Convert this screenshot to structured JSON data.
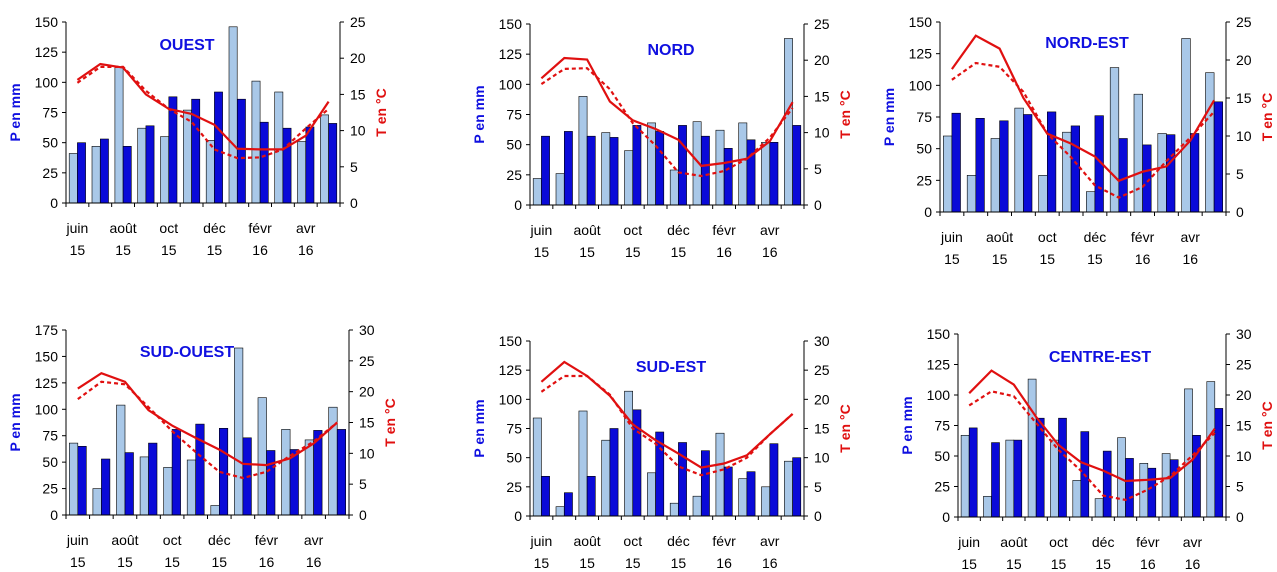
{
  "chart_data": [
    {
      "type": "bar",
      "title": "OUEST",
      "ylabel": "P en mm",
      "y2label": "T en °C",
      "ylim": [
        0,
        150
      ],
      "y2lim": [
        0,
        25
      ],
      "yticks": [
        "0",
        "25",
        "50",
        "75",
        "100",
        "125",
        "150"
      ],
      "y2ticks": [
        "0",
        "5",
        "10",
        "15",
        "20",
        "25"
      ],
      "xticks": [
        [
          "juin",
          "15"
        ],
        [
          "août",
          "15"
        ],
        [
          "oct",
          "15"
        ],
        [
          "déc",
          "15"
        ],
        [
          "févr",
          "16"
        ],
        [
          "avr",
          "16"
        ]
      ],
      "precip_light": [
        41,
        47,
        113,
        62,
        55,
        77,
        52,
        146,
        101,
        92,
        51,
        73
      ],
      "precip_dark": [
        50,
        53,
        47,
        64,
        88,
        86,
        92,
        86,
        67,
        62,
        63,
        66
      ],
      "temp_solid": [
        17.0,
        19.2,
        18.7,
        15.0,
        13.0,
        12.3,
        10.8,
        7.5,
        7.4,
        7.4,
        9.3,
        14.0
      ],
      "temp_dashed": [
        16.6,
        18.8,
        18.8,
        15.5,
        13.0,
        11.2,
        7.4,
        6.2,
        6.3,
        7.4,
        10.3,
        13.0
      ]
    },
    {
      "type": "bar",
      "title": "NORD",
      "ylabel": "P en mm",
      "y2label": "T en °C",
      "ylim": [
        0,
        150
      ],
      "y2lim": [
        0,
        25
      ],
      "yticks": [
        "0",
        "25",
        "50",
        "75",
        "100",
        "125",
        "150"
      ],
      "y2ticks": [
        "0",
        "5",
        "10",
        "15",
        "20",
        "25"
      ],
      "xticks": [
        [
          "juin",
          "15"
        ],
        [
          "août",
          "15"
        ],
        [
          "oct",
          "15"
        ],
        [
          "déc",
          "15"
        ],
        [
          "févr",
          "16"
        ],
        [
          "avr",
          "16"
        ]
      ],
      "precip_light": [
        22,
        26,
        90,
        60,
        45,
        68,
        29,
        69,
        62,
        68,
        52,
        138
      ],
      "precip_dark": [
        57,
        61,
        57,
        56,
        66,
        61,
        66,
        57,
        47,
        54,
        52,
        66
      ],
      "temp_solid": [
        17.5,
        20.3,
        20.1,
        14.3,
        11.7,
        10.5,
        9.0,
        5.4,
        5.8,
        6.4,
        8.8,
        14.2
      ],
      "temp_dashed": [
        16.7,
        18.8,
        18.9,
        16.0,
        11.3,
        8.2,
        4.5,
        4.0,
        4.7,
        6.4,
        9.3,
        13.4
      ]
    },
    {
      "type": "bar",
      "title": "NORD-EST",
      "ylabel": "P en mm",
      "y2label": "T en °C",
      "ylim": [
        0,
        150
      ],
      "y2lim": [
        0,
        25
      ],
      "yticks": [
        "0",
        "25",
        "50",
        "75",
        "100",
        "125",
        "150"
      ],
      "y2ticks": [
        "0",
        "5",
        "10",
        "15",
        "20",
        "25"
      ],
      "xticks": [
        [
          "juin",
          "15"
        ],
        [
          "août",
          "15"
        ],
        [
          "oct",
          "15"
        ],
        [
          "déc",
          "15"
        ],
        [
          "févr",
          "16"
        ],
        [
          "avr",
          "16"
        ]
      ],
      "precip_light": [
        60,
        29,
        58,
        82,
        29,
        63,
        16,
        114,
        93,
        62,
        137,
        110
      ],
      "precip_dark": [
        78,
        74,
        72,
        77,
        79,
        68,
        76,
        58,
        53,
        61,
        62,
        87
      ],
      "temp_solid": [
        18.8,
        23.2,
        21.5,
        15.0,
        10.3,
        9.0,
        7.3,
        4.1,
        5.3,
        6.0,
        9.4,
        14.7
      ],
      "temp_dashed": [
        17.4,
        19.6,
        19.1,
        15.8,
        10.3,
        7.2,
        3.5,
        1.9,
        3.3,
        6.7,
        9.8,
        13.2
      ]
    },
    {
      "type": "bar",
      "title": "SUD-OUEST",
      "ylabel": "P en mm",
      "y2label": "T en °C",
      "ylim": [
        0,
        175
      ],
      "y2lim": [
        0,
        30
      ],
      "yticks": [
        "0",
        "25",
        "50",
        "75",
        "100",
        "125",
        "150",
        "175"
      ],
      "y2ticks": [
        "0",
        "5",
        "10",
        "15",
        "20",
        "25",
        "30"
      ],
      "xticks": [
        [
          "juin",
          "15"
        ],
        [
          "août",
          "15"
        ],
        [
          "oct",
          "15"
        ],
        [
          "déc",
          "15"
        ],
        [
          "févr",
          "16"
        ],
        [
          "avr",
          "16"
        ]
      ],
      "precip_light": [
        68,
        25,
        104,
        55,
        45,
        52,
        9,
        158,
        111,
        81,
        71,
        102
      ],
      "precip_dark": [
        65,
        53,
        59,
        68,
        81,
        86,
        82,
        73,
        61,
        62,
        80,
        81
      ],
      "temp_solid": [
        20.5,
        23.0,
        21.6,
        17.0,
        14.5,
        12.5,
        10.6,
        8.3,
        8.1,
        9.2,
        11.6,
        15.0
      ],
      "temp_dashed": [
        18.8,
        21.6,
        21.2,
        17.5,
        13.6,
        10.2,
        7.0,
        6.0,
        7.0,
        9.6,
        11.9,
        15.0
      ]
    },
    {
      "type": "bar",
      "title": "SUD-EST",
      "ylabel": "P en mm",
      "y2label": "T en °C",
      "ylim": [
        0,
        150
      ],
      "y2lim": [
        0,
        30
      ],
      "yticks": [
        "0",
        "25",
        "50",
        "75",
        "100",
        "125",
        "150"
      ],
      "y2ticks": [
        "0",
        "5",
        "10",
        "15",
        "20",
        "25",
        "30"
      ],
      "xticks": [
        [
          "juin",
          "15"
        ],
        [
          "août",
          "15"
        ],
        [
          "oct",
          "15"
        ],
        [
          "déc",
          "15"
        ],
        [
          "févr",
          "16"
        ],
        [
          "avr",
          "16"
        ]
      ],
      "precip_light": [
        84,
        8,
        90,
        65,
        107,
        37,
        11,
        17,
        71,
        32,
        25,
        47
      ],
      "precip_dark": [
        34,
        20,
        34,
        75,
        91,
        72,
        63,
        56,
        42,
        38,
        62,
        50
      ],
      "temp_solid": [
        23.0,
        26.4,
        24.0,
        20.6,
        15.7,
        13.0,
        10.7,
        8.3,
        9.0,
        10.4,
        14.0,
        17.5
      ],
      "temp_dashed": [
        21.3,
        24.0,
        24.0,
        20.8,
        15.0,
        12.4,
        8.5,
        7.0,
        8.0,
        10.0,
        14.0,
        17.5
      ]
    },
    {
      "type": "bar",
      "title": "CENTRE-EST",
      "ylabel": "P en mm",
      "y2label": "T en °C",
      "ylim": [
        0,
        150
      ],
      "y2lim": [
        0,
        30
      ],
      "yticks": [
        "0",
        "25",
        "50",
        "75",
        "100",
        "125",
        "150"
      ],
      "y2ticks": [
        "0",
        "5",
        "10",
        "15",
        "20",
        "25",
        "30"
      ],
      "xticks": [
        [
          "juin",
          "15"
        ],
        [
          "août",
          "15"
        ],
        [
          "oct",
          "15"
        ],
        [
          "déc",
          "15"
        ],
        [
          "févr",
          "16"
        ],
        [
          "avr",
          "16"
        ]
      ],
      "precip_light": [
        67,
        17,
        63,
        113,
        63,
        30,
        15,
        65,
        44,
        52,
        105,
        111
      ],
      "precip_dark": [
        73,
        61,
        63,
        81,
        81,
        70,
        54,
        48,
        40,
        47,
        67,
        89
      ],
      "temp_solid": [
        20.3,
        24.0,
        21.7,
        16.4,
        11.8,
        9.0,
        7.6,
        5.9,
        6.1,
        6.4,
        9.4,
        14.5
      ],
      "temp_dashed": [
        18.3,
        20.6,
        19.8,
        15.4,
        11.0,
        7.6,
        3.5,
        2.8,
        4.5,
        6.7,
        10.1,
        13.8
      ]
    }
  ],
  "colors": {
    "bar_light": "#a9c8e8",
    "bar_dark": "#0a0ad8",
    "title": "#1010e0",
    "ylabel": "#1010e0",
    "y2label": "#e01010",
    "line": "#e01010",
    "axis": "#000000"
  }
}
